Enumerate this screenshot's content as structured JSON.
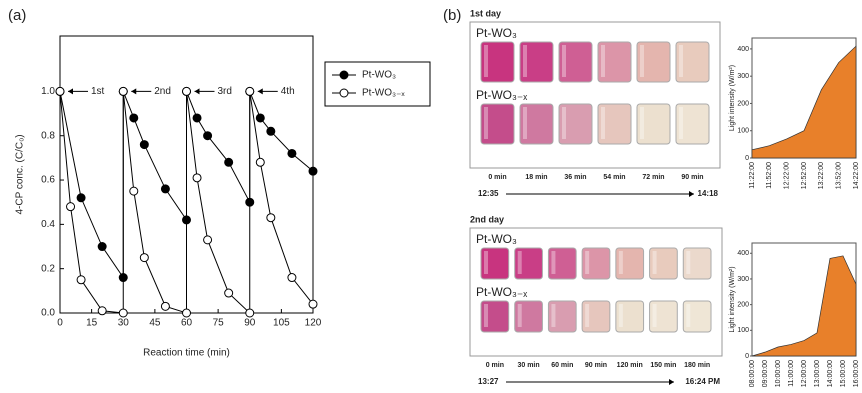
{
  "panel_labels": [
    "(a)",
    "(b)"
  ],
  "chart_data": [
    {
      "type": "line",
      "xlabel": "Reaction time (min)",
      "ylabel": "4-CP conc. (C/C₀)",
      "xlim": [
        0,
        120
      ],
      "xticks": [
        0,
        15,
        30,
        45,
        60,
        75,
        90,
        105,
        120
      ],
      "ylim": [
        0,
        1.25
      ],
      "yticks": [
        {
          "value": 0,
          "label": "0.0"
        },
        {
          "value": 0.2,
          "label": "0.2"
        },
        {
          "value": 0.4,
          "label": "0.4"
        },
        {
          "value": 0.6,
          "label": "0.6"
        },
        {
          "value": 0.8,
          "label": "0.8"
        },
        {
          "value": 1,
          "label": "1.0"
        }
      ],
      "annotations": [
        "1st",
        "2nd",
        "3rd",
        "4th"
      ],
      "series": [
        {
          "name": "Pt-WO₃",
          "color": "#000000",
          "marker": "filled",
          "x": [
            0,
            10,
            20,
            30,
            30,
            35,
            40,
            50,
            60,
            60,
            65,
            70,
            80,
            90,
            90,
            95,
            100,
            110,
            120
          ],
          "values": [
            1.0,
            0.52,
            0.3,
            0.16,
            1.0,
            0.88,
            0.76,
            0.56,
            0.42,
            1.0,
            0.88,
            0.8,
            0.68,
            0.5,
            1.0,
            0.88,
            0.82,
            0.72,
            0.64
          ]
        },
        {
          "name": "Pt-WO₃₋ₓ",
          "color": "#000000",
          "marker": "open",
          "x": [
            0,
            5,
            10,
            20,
            30,
            30,
            35,
            40,
            50,
            60,
            60,
            65,
            70,
            80,
            90,
            90,
            95,
            100,
            110,
            120
          ],
          "values": [
            1.0,
            0.48,
            0.15,
            0.01,
            0.0,
            1.0,
            0.55,
            0.25,
            0.03,
            0.0,
            1.0,
            0.61,
            0.33,
            0.09,
            0.0,
            1.0,
            0.68,
            0.43,
            0.16,
            0.04
          ]
        }
      ]
    },
    {
      "type": "area",
      "ylabel": "Light intensity (W/m²)",
      "color": "#e8802a",
      "categories": [
        "11:22:00",
        "11:52:00",
        "12:22:00",
        "12:52:00",
        "13:22:00",
        "13:52:00",
        "14:22:00"
      ],
      "values": [
        30,
        45,
        70,
        100,
        250,
        350,
        410
      ],
      "ylim": [
        0,
        440
      ],
      "yticks": [
        0,
        100,
        200,
        300,
        400
      ]
    },
    {
      "type": "area",
      "ylabel": "Light intensity (W/m²)",
      "color": "#e8802a",
      "categories": [
        "08:00:00",
        "09:00:00",
        "10:00:00",
        "11:00:00",
        "12:00:00",
        "13:00:00",
        "14:00:00",
        "15:00:00",
        "16:00:00"
      ],
      "values": [
        0,
        15,
        35,
        45,
        60,
        90,
        380,
        390,
        280
      ],
      "ylim": [
        0,
        440
      ],
      "yticks": [
        0,
        100,
        200,
        300,
        400
      ]
    }
  ],
  "photos": [
    {
      "day": "1st day",
      "rows": [
        "Pt-WO₃",
        "Pt-WO₃₋ₓ"
      ],
      "times": [
        "0 min",
        "18 min",
        "36 min",
        "54 min",
        "72 min",
        "90 min"
      ],
      "start": "12:35",
      "end": "14:18"
    },
    {
      "day": "2nd day",
      "rows": [
        "Pt-WO₃",
        "Pt-WO₃₋ₓ"
      ],
      "times": [
        "0 min",
        "30 min",
        "60 min",
        "90 min",
        "120 min",
        "150 min",
        "180 min"
      ],
      "start": "13:27",
      "end": "16:24 PM"
    }
  ]
}
